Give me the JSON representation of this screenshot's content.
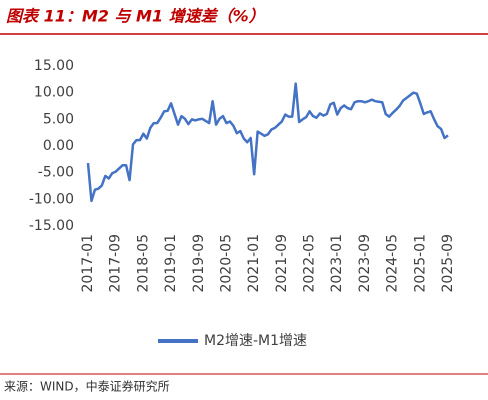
{
  "chart_data": {
    "type": "line",
    "title": "图表 11：M2 与 M1 增速差（%）",
    "source": "来源：WIND，中泰证券研究所",
    "categories": [
      "2017-01",
      null,
      null,
      null,
      null,
      null,
      null,
      null,
      "2017-09",
      null,
      null,
      null,
      null,
      null,
      null,
      null,
      "2018-05",
      null,
      null,
      null,
      null,
      null,
      null,
      null,
      "2019-01",
      null,
      null,
      null,
      null,
      null,
      null,
      null,
      "2019-09",
      null,
      null,
      null,
      null,
      null,
      null,
      null,
      "2020-05",
      null,
      null,
      null,
      null,
      null,
      null,
      null,
      "2021-01",
      null,
      null,
      null,
      null,
      null,
      null,
      null,
      "2021-09",
      null,
      null,
      null,
      null,
      null,
      null,
      null,
      "2022-05",
      null,
      null,
      null,
      null,
      null,
      null,
      null,
      "2023-01",
      null,
      null,
      null,
      null,
      null,
      null,
      null,
      "2023-09",
      null,
      null,
      null,
      null,
      null,
      null,
      null,
      "2024-05",
      null,
      null,
      null,
      null,
      null,
      null,
      null,
      "2025-01",
      null,
      null,
      null,
      null,
      null,
      null,
      null,
      "2025-09"
    ],
    "series": [
      {
        "name": "M2增速-M1增速",
        "color": "#4472c4",
        "values": [
          -3.2,
          -10.3,
          -8.2,
          -8.0,
          -7.4,
          -5.6,
          -6.1,
          -5.1,
          -4.8,
          -4.2,
          -3.6,
          -3.6,
          -6.4,
          0.3,
          1.1,
          1.1,
          2.3,
          1.4,
          3.4,
          4.3,
          4.3,
          5.3,
          6.5,
          6.6,
          8.0,
          6.0,
          4.0,
          5.6,
          5.1,
          4.1,
          5.0,
          4.8,
          5.0,
          5.1,
          4.7,
          4.3,
          8.4,
          4.0,
          5.1,
          5.6,
          4.3,
          4.6,
          3.8,
          2.4,
          2.8,
          1.4,
          0.7,
          1.5,
          -5.3,
          2.7,
          2.3,
          1.9,
          2.2,
          3.1,
          3.4,
          4.0,
          4.6,
          5.9,
          5.5,
          5.5,
          11.7,
          4.5,
          5.0,
          5.4,
          6.5,
          5.6,
          5.3,
          6.1,
          5.7,
          6.0,
          7.8,
          8.1,
          5.9,
          7.1,
          7.6,
          7.1,
          6.9,
          8.2,
          8.4,
          8.4,
          8.2,
          8.4,
          8.7,
          8.4,
          8.3,
          8.2,
          6.0,
          5.5,
          6.2,
          6.8,
          7.5,
          8.5,
          9.0,
          9.5,
          10.0,
          9.8,
          8.0,
          6.0,
          6.3,
          6.5,
          5.0,
          3.7,
          3.2,
          1.5,
          2.0
        ]
      }
    ],
    "ylim": [
      -15,
      15
    ],
    "yticks": [
      {
        "value": -15,
        "label": "-15.00"
      },
      {
        "value": -10,
        "label": "-10.00"
      },
      {
        "value": -5,
        "label": "-5.00"
      },
      {
        "value": 0,
        "label": "0.00"
      },
      {
        "value": 5,
        "label": "5.00"
      },
      {
        "value": 10,
        "label": "10.00"
      },
      {
        "value": 15,
        "label": "15.00"
      }
    ],
    "grid": false
  }
}
